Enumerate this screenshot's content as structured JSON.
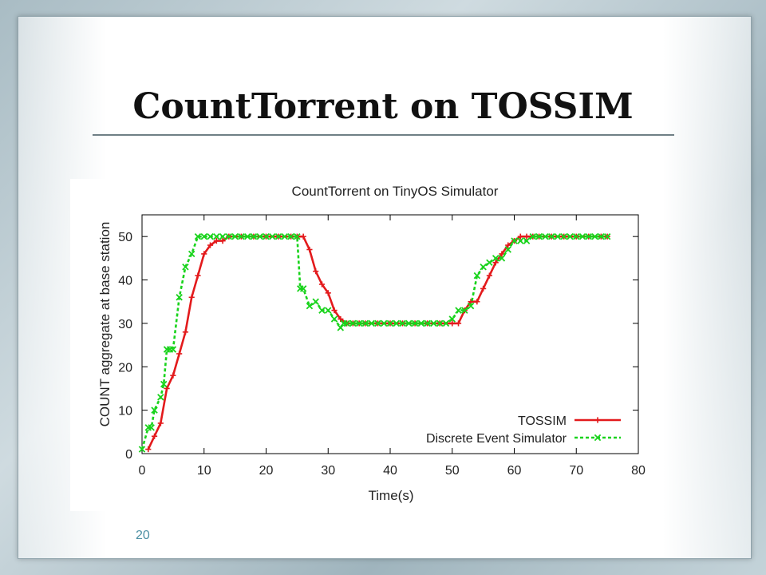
{
  "slide": {
    "title": "CountTorrent on TOSSIM",
    "page_number": "20"
  },
  "colors": {
    "tossim": "#e31a1c",
    "des": "#19d31c"
  },
  "chart_data": {
    "type": "line",
    "title": "CountTorrent on TinyOS Simulator",
    "xlabel": "Time(s)",
    "ylabel": "COUNT aggregate at base station",
    "xlim": [
      0,
      80
    ],
    "ylim": [
      0,
      55
    ],
    "xticks": [
      0,
      10,
      20,
      30,
      40,
      50,
      60,
      70,
      80
    ],
    "yticks": [
      0,
      10,
      20,
      30,
      40,
      50
    ],
    "grid": false,
    "legend_position": "bottom-right",
    "series": [
      {
        "name": "TOSSIM",
        "marker": "+",
        "line_style": "solid",
        "x": [
          1,
          2,
          3,
          4,
          5,
          6,
          7,
          8,
          9,
          10,
          11,
          12,
          13,
          14,
          16,
          18,
          20,
          22,
          24,
          25,
          26,
          27,
          28,
          29,
          30,
          31,
          32,
          33,
          34,
          35,
          36,
          38,
          40,
          42,
          44,
          46,
          48,
          50,
          51,
          52,
          53,
          54,
          55,
          56,
          57,
          58,
          59,
          60,
          61,
          62,
          63,
          64,
          66,
          68,
          70,
          72,
          74,
          75
        ],
        "y": [
          1,
          4,
          7,
          15,
          18,
          23,
          28,
          36,
          41,
          46,
          48,
          49,
          49,
          50,
          50,
          50,
          50,
          50,
          50,
          50,
          50,
          47,
          42,
          39,
          37,
          33,
          31,
          30,
          30,
          30,
          30,
          30,
          30,
          30,
          30,
          30,
          30,
          30,
          30,
          33,
          35,
          35,
          38,
          41,
          44,
          46,
          48,
          49,
          50,
          50,
          50,
          50,
          50,
          50,
          50,
          50,
          50,
          50
        ]
      },
      {
        "name": "Discrete Event Simulator",
        "marker": "x",
        "line_style": "dashed",
        "x": [
          0,
          1,
          1.5,
          2,
          3,
          3.5,
          4,
          4.5,
          5,
          6,
          7,
          8,
          9,
          10,
          11,
          12,
          13,
          14,
          15,
          16,
          17,
          18,
          19,
          20,
          21,
          22,
          23,
          24,
          25,
          25.5,
          26,
          27,
          28,
          29,
          30,
          31,
          32,
          32.5,
          33,
          34,
          35,
          36,
          37,
          38,
          39,
          40,
          41,
          42,
          43,
          44,
          45,
          46,
          47,
          48,
          49,
          50,
          51,
          52,
          53,
          54,
          55,
          56,
          57,
          58,
          59,
          60,
          61,
          62,
          63,
          64,
          65,
          66,
          67,
          68,
          69,
          70,
          71,
          72,
          73,
          74,
          75
        ],
        "y": [
          1,
          6,
          6,
          10,
          13,
          16,
          24,
          24,
          24,
          36,
          43,
          46,
          50,
          50,
          50,
          50,
          50,
          50,
          50,
          50,
          50,
          50,
          50,
          50,
          50,
          50,
          50,
          50,
          50,
          38,
          38,
          34,
          35,
          33,
          33,
          31,
          29,
          30,
          30,
          30,
          30,
          30,
          30,
          30,
          30,
          30,
          30,
          30,
          30,
          30,
          30,
          30,
          30,
          30,
          30,
          31,
          33,
          33,
          34,
          41,
          43,
          44,
          45,
          45,
          47,
          49,
          49,
          49,
          50,
          50,
          50,
          50,
          50,
          50,
          50,
          50,
          50,
          50,
          50,
          50,
          50
        ]
      }
    ]
  }
}
